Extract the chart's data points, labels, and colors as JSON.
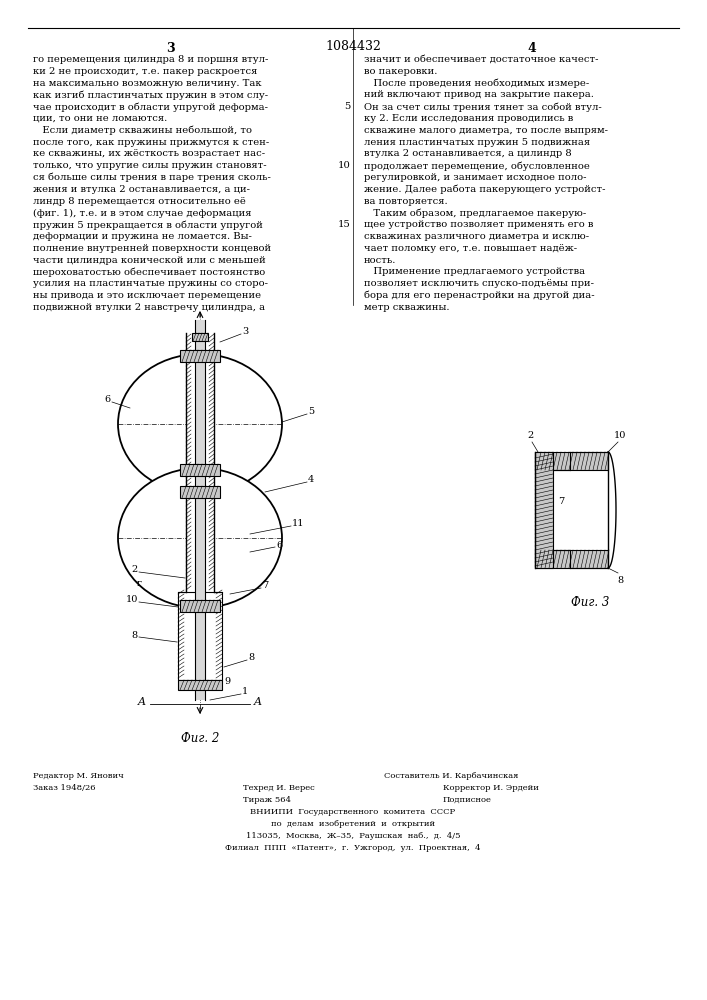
{
  "title": "1084432",
  "page_num_left": "3",
  "page_num_right": "4",
  "fig2_caption": "Фиг. 2",
  "fig3_caption": "Фиг. 3",
  "text_col1_lines": [
    "го перемещения цилиндра 8 и поршня втул-",
    "ки 2 не происходит, т.е. пакер раскроется",
    "на максимально возможную величину. Так",
    "как изгиб пластинчатых пружин в этом слу-",
    "чае происходит в области упругой деформа-",
    "ции, то они не ломаются.",
    "   Если диаметр скважины небольшой, то",
    "после того, как пружины прижмутся к стен-",
    "ке скважины, их жёсткость возрастает нас-",
    "только, что упругие силы пружин становят-",
    "ся больше силы трения в паре трения сколь-",
    "жения и втулка 2 останавливается, а ци-",
    "линдр 8 перемещается относительно её",
    "(фиг. 1), т.е. и в этом случае деформация",
    "пружин 5 прекращается в области упругой",
    "деформации и пружина не ломается. Вы-",
    "полнение внутренней поверхности концевой",
    "части цилиндра конической или с меньшей",
    "шероховатостью обеспечивает постоянство",
    "усилия на пластинчатые пружины со сторо-",
    "ны привода и это исключает перемещение",
    "подвижной втулки 2 навстречу цилиндра, а"
  ],
  "text_col2_lines": [
    "значит и обеспечивает достаточное качест-",
    "во пакеровки.",
    "   После проведения необходимых измере-",
    "ний включают привод на закрытие пакера.",
    "Он за счет силы трения тянет за собой втул-",
    "ку 2. Если исследования проводились в",
    "скважине малого диаметра, то после выпрям-",
    "ления пластинчатых пружин 5 подвижная",
    "втулка 2 останавливается, а цилиндр 8",
    "продолжает перемещение, обусловленное",
    "регулировкой, и занимает исходное поло-",
    "жение. Далее работа пакерующего устройст-",
    "ва повторяется.",
    "   Таким образом, предлагаемое пакерую-",
    "щее устройство позволяет применять его в",
    "скважинах различного диаметра и исклю-",
    "чает поломку его, т.е. повышает надёж-",
    "ность.",
    "   Применение предлагаемого устройства",
    "позволяет исключить спуско-подъёмы при-",
    "бора для его перенастройки на другой диа-",
    "метр скважины."
  ],
  "line_numbers": [
    [
      "5",
      5
    ],
    [
      "10",
      10
    ],
    [
      "15",
      15
    ]
  ],
  "bg_color": "#ffffff",
  "text_color": "#000000",
  "line_color": "#000000"
}
